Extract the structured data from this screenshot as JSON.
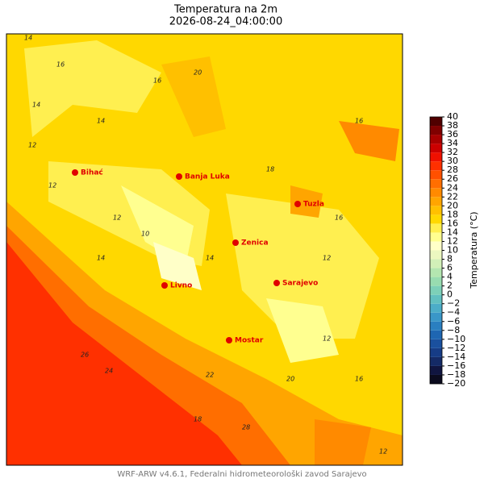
{
  "title": "Temperatura na 2m",
  "subtitle": "2026-08-24_04:00:00",
  "footer": "WRF-ARW v4.6.1, Federalni hidrometeorološki zavod Sarajevo",
  "colorbar": {
    "label": "Temperatura (°C)",
    "ticks": [
      {
        "value": -20,
        "label": "−20"
      },
      {
        "value": -18,
        "label": "−18"
      },
      {
        "value": -16,
        "label": "−16"
      },
      {
        "value": -14,
        "label": "−14"
      },
      {
        "value": -12,
        "label": "−12"
      },
      {
        "value": -10,
        "label": "−10"
      },
      {
        "value": -8,
        "label": "−8"
      },
      {
        "value": -6,
        "label": "−6"
      },
      {
        "value": -4,
        "label": "−4"
      },
      {
        "value": -2,
        "label": "−2"
      },
      0,
      2,
      4,
      6,
      8,
      10,
      12,
      14,
      16,
      18,
      20,
      22,
      24,
      26,
      28,
      30,
      32,
      34,
      36,
      38,
      40
    ],
    "colors": [
      "#0b0b1e",
      "#101540",
      "#142a66",
      "#163c86",
      "#1a509e",
      "#1e66b2",
      "#2a7fc0",
      "#3a97c8",
      "#4cadc8",
      "#62c0c0",
      "#7dd0b8",
      "#98dcb0",
      "#b4e6b0",
      "#d2f0b8",
      "#ecf8c0",
      "#ffffc8",
      "#ffff90",
      "#ffef50",
      "#ffd800",
      "#ffc000",
      "#ffa500",
      "#ff8a00",
      "#ff6e00",
      "#ff5000",
      "#ff3000",
      "#f01000",
      "#cc0000",
      "#a80000",
      "#800000",
      "#500000"
    ]
  },
  "cities": [
    "Bihać",
    "Banja Luka",
    "Tuzla",
    "Zenica",
    "Livno",
    "Sarajevo",
    "Mostar"
  ],
  "contour_labels": [
    14,
    16,
    14,
    12,
    16,
    20,
    14,
    12,
    16,
    18,
    12,
    10,
    14,
    16,
    12,
    20,
    22,
    18,
    26,
    24,
    28,
    12,
    16,
    14,
    12
  ]
}
